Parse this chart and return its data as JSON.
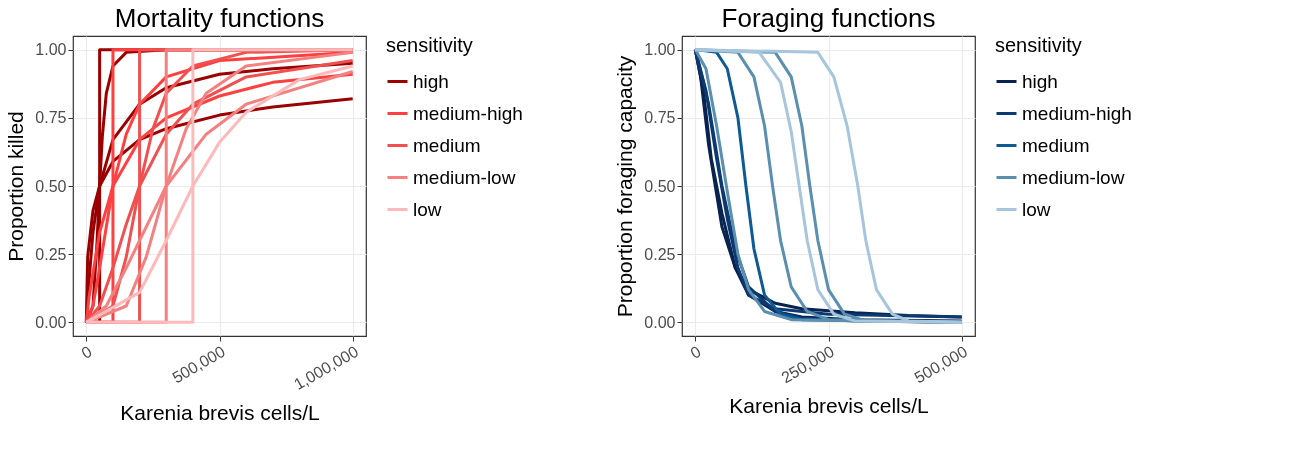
{
  "chart_data": [
    {
      "type": "line",
      "title": "Mortality functions",
      "xlabel": "Karenia brevis cells/L",
      "ylabel": "Proportion killed",
      "legend_title": "sensitivity",
      "legend": "right",
      "grid": true,
      "line_style": "solid",
      "xlim": [
        -50000,
        1050000
      ],
      "ylim": [
        -0.05,
        1.05
      ],
      "xticks": [
        {
          "value": 0,
          "label": "0"
        },
        {
          "value": 500000,
          "label": "500,000"
        },
        {
          "value": 1000000,
          "label": "1,000,000"
        }
      ],
      "yticks": [
        {
          "value": 0,
          "label": "0.00"
        },
        {
          "value": 0.25,
          "label": "0.25"
        },
        {
          "value": 0.5,
          "label": "0.50"
        },
        {
          "value": 0.75,
          "label": "0.75"
        },
        {
          "value": 1,
          "label": "1.00"
        }
      ],
      "series": [
        {
          "name": "high",
          "color": "#9b0000",
          "x": [
            0,
            50000,
            50000,
            1000000
          ],
          "values": [
            0,
            0,
            1,
            1
          ]
        },
        {
          "color": "#9b0000",
          "x": [
            0,
            5000,
            25000,
            50000,
            100000,
            200000,
            300000,
            500000,
            700000,
            1000000
          ],
          "values": [
            0,
            0.24,
            0.41,
            0.5,
            0.59,
            0.67,
            0.71,
            0.76,
            0.79,
            0.82
          ]
        },
        {
          "color": "#9b0000",
          "x": [
            0,
            5000,
            25000,
            50000,
            100000,
            200000,
            300000,
            500000,
            700000,
            1000000
          ],
          "values": [
            0,
            0.09,
            0.33,
            0.5,
            0.67,
            0.8,
            0.86,
            0.91,
            0.93,
            0.95
          ]
        },
        {
          "color": "#9b0000",
          "x": [
            0,
            25000,
            40000,
            50000,
            60000,
            75000,
            100000,
            150000,
            300000,
            1000000
          ],
          "values": [
            0,
            0.06,
            0.29,
            0.5,
            0.68,
            0.84,
            0.94,
            0.99,
            1,
            1
          ]
        },
        {
          "name": "medium-high",
          "color": "#ff4040",
          "x": [
            0,
            100000,
            100000,
            1000000
          ],
          "values": [
            0,
            0,
            1,
            1
          ]
        },
        {
          "color": "#ff4040",
          "x": [
            0,
            10000,
            50000,
            100000,
            200000,
            300000,
            500000,
            700000,
            1000000
          ],
          "values": [
            0,
            0.09,
            0.33,
            0.5,
            0.67,
            0.75,
            0.83,
            0.88,
            0.91
          ]
        },
        {
          "color": "#ff4040",
          "x": [
            0,
            25000,
            50000,
            100000,
            150000,
            200000,
            300000,
            500000,
            1000000
          ],
          "values": [
            0,
            0.06,
            0.2,
            0.5,
            0.69,
            0.8,
            0.9,
            0.96,
            0.99
          ]
        },
        {
          "name": "medium",
          "color": "#f05050",
          "x": [
            0,
            200000,
            200000,
            1000000
          ],
          "values": [
            0,
            0,
            1,
            1
          ]
        },
        {
          "color": "#f05050",
          "x": [
            0,
            50000,
            100000,
            150000,
            200000,
            300000,
            400000,
            600000,
            1000000
          ],
          "values": [
            0,
            0.06,
            0.2,
            0.36,
            0.5,
            0.69,
            0.8,
            0.9,
            0.96
          ]
        },
        {
          "color": "#f05050",
          "x": [
            0,
            100000,
            150000,
            200000,
            250000,
            300000,
            400000,
            600000,
            1000000
          ],
          "values": [
            0,
            0.06,
            0.24,
            0.5,
            0.71,
            0.84,
            0.94,
            0.99,
            1
          ]
        },
        {
          "name": "medium-low",
          "color": "#f48080",
          "x": [
            0,
            300000,
            300000,
            1000000
          ],
          "values": [
            0,
            0,
            1,
            1
          ]
        },
        {
          "color": "#f48080",
          "x": [
            0,
            75000,
            150000,
            300000,
            450000,
            600000,
            1000000
          ],
          "values": [
            0,
            0.06,
            0.2,
            0.5,
            0.69,
            0.8,
            0.92
          ]
        },
        {
          "color": "#f48080",
          "x": [
            0,
            150000,
            225000,
            300000,
            375000,
            450000,
            600000,
            1000000
          ],
          "values": [
            0,
            0.06,
            0.24,
            0.5,
            0.71,
            0.84,
            0.94,
            0.99
          ]
        },
        {
          "name": "low",
          "color": "#fcbaba",
          "x": [
            0,
            400000,
            400000,
            1000000
          ],
          "values": [
            0,
            0,
            1,
            1
          ]
        },
        {
          "color": "#fcbaba",
          "x": [
            0,
            200000,
            300000,
            400000,
            500000,
            600000,
            800000,
            1000000
          ],
          "values": [
            0,
            0.11,
            0.3,
            0.5,
            0.66,
            0.77,
            0.89,
            0.94
          ]
        }
      ]
    },
    {
      "type": "line",
      "title": "Foraging functions",
      "xlabel": "Karenia brevis cells/L",
      "ylabel": "Proportion foraging capacity",
      "legend_title": "sensitivity",
      "legend": "right",
      "grid": true,
      "line_style": "solid",
      "xlim": [
        -25000,
        525000
      ],
      "ylim": [
        -0.05,
        1.05
      ],
      "xticks": [
        {
          "value": 0,
          "label": "0"
        },
        {
          "value": 250000,
          "label": "250,000"
        },
        {
          "value": 500000,
          "label": "500,000"
        }
      ],
      "yticks": [
        {
          "value": 0,
          "label": "0.00"
        },
        {
          "value": 0.25,
          "label": "0.25"
        },
        {
          "value": 0.5,
          "label": "0.50"
        },
        {
          "value": 0.75,
          "label": "0.75"
        },
        {
          "value": 1,
          "label": "1.00"
        }
      ],
      "series": [
        {
          "name": "high",
          "color": "#08234f",
          "x": [
            0,
            10000,
            25000,
            50000,
            75000,
            100000,
            150000,
            200000,
            300000,
            400000,
            500000
          ],
          "values": [
            1,
            0.9,
            0.65,
            0.35,
            0.2,
            0.12,
            0.07,
            0.05,
            0.035,
            0.025,
            0.02
          ]
        },
        {
          "color": "#08234f",
          "x": [
            0,
            15000,
            30000,
            50000,
            75000,
            100000,
            150000,
            200000,
            300000,
            500000
          ],
          "values": [
            1,
            0.85,
            0.6,
            0.4,
            0.2,
            0.1,
            0.04,
            0.02,
            0.01,
            0.005
          ]
        },
        {
          "name": "medium-high",
          "color": "#0b3a72",
          "x": [
            0,
            20000,
            40000,
            60000,
            80000,
            100000,
            150000,
            250000,
            500000
          ],
          "values": [
            1,
            0.85,
            0.6,
            0.38,
            0.2,
            0.1,
            0.05,
            0.03,
            0.02
          ]
        },
        {
          "color": "#0b3a72",
          "x": [
            0,
            25000,
            50000,
            75000,
            100000,
            150000,
            200000,
            300000,
            500000
          ],
          "values": [
            1,
            0.8,
            0.5,
            0.27,
            0.13,
            0.04,
            0.015,
            0.005,
            0
          ]
        },
        {
          "name": "medium",
          "color": "#0e5a95",
          "x": [
            0,
            40000,
            60000,
            80000,
            95000,
            110000,
            130000,
            160000,
            200000,
            500000
          ],
          "values": [
            1,
            0.99,
            0.93,
            0.75,
            0.5,
            0.27,
            0.1,
            0.03,
            0.01,
            0
          ]
        },
        {
          "name": "medium-low",
          "color": "#5b8fb0",
          "x": [
            0,
            20000,
            40000,
            60000,
            80000,
            100000,
            130000,
            180000,
            500000
          ],
          "values": [
            1,
            0.93,
            0.72,
            0.48,
            0.25,
            0.12,
            0.04,
            0.01,
            0
          ]
        },
        {
          "color": "#5b8fb0",
          "x": [
            0,
            80000,
            110000,
            130000,
            145000,
            160000,
            180000,
            210000,
            250000,
            500000
          ],
          "values": [
            1,
            0.99,
            0.9,
            0.72,
            0.5,
            0.3,
            0.13,
            0.04,
            0.01,
            0
          ]
        },
        {
          "color": "#5b8fb0",
          "x": [
            0,
            150000,
            180000,
            200000,
            215000,
            230000,
            250000,
            280000,
            320000,
            500000
          ],
          "values": [
            1,
            0.99,
            0.9,
            0.72,
            0.5,
            0.3,
            0.12,
            0.03,
            0.005,
            0
          ]
        },
        {
          "name": "low",
          "color": "#a7c6dc",
          "x": [
            0,
            120000,
            160000,
            180000,
            195000,
            210000,
            230000,
            260000,
            300000,
            500000
          ],
          "values": [
            1,
            0.99,
            0.88,
            0.7,
            0.5,
            0.3,
            0.12,
            0.03,
            0.005,
            0
          ]
        },
        {
          "color": "#a7c6dc",
          "x": [
            0,
            230000,
            260000,
            285000,
            305000,
            320000,
            340000,
            370000,
            400000,
            500000
          ],
          "values": [
            1,
            0.99,
            0.9,
            0.72,
            0.5,
            0.3,
            0.12,
            0.03,
            0.005,
            0
          ]
        }
      ]
    }
  ]
}
